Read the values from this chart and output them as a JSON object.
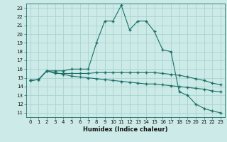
{
  "title": "",
  "xlabel": "Humidex (Indice chaleur)",
  "ylabel": "",
  "xlim": [
    -0.5,
    23.5
  ],
  "ylim": [
    10.5,
    23.5
  ],
  "xticks": [
    0,
    1,
    2,
    3,
    4,
    5,
    6,
    7,
    8,
    9,
    10,
    11,
    12,
    13,
    14,
    15,
    16,
    17,
    18,
    19,
    20,
    21,
    22,
    23
  ],
  "yticks": [
    11,
    12,
    13,
    14,
    15,
    16,
    17,
    18,
    19,
    20,
    21,
    22,
    23
  ],
  "background_color": "#cceae7",
  "grid_color": "#aad4d0",
  "line_color": "#1a7068",
  "line1_x": [
    0,
    1,
    2,
    3,
    4,
    5,
    6,
    7,
    8,
    9,
    10,
    11,
    12,
    13,
    14,
    15,
    16,
    17,
    18,
    19,
    20,
    21,
    22,
    23
  ],
  "line1_y": [
    14.7,
    14.8,
    15.8,
    15.8,
    15.8,
    16.0,
    16.0,
    16.0,
    19.0,
    21.5,
    21.5,
    23.3,
    20.5,
    21.5,
    21.5,
    20.3,
    18.2,
    18.0,
    13.4,
    13.0,
    12.0,
    11.5,
    11.2,
    11.0
  ],
  "line2_x": [
    0,
    1,
    2,
    3,
    4,
    5,
    6,
    7,
    8,
    9,
    10,
    11,
    12,
    13,
    14,
    15,
    16,
    17,
    18,
    19,
    20,
    21,
    22,
    23
  ],
  "line2_y": [
    14.7,
    14.8,
    15.8,
    15.5,
    15.5,
    15.5,
    15.5,
    15.5,
    15.6,
    15.6,
    15.6,
    15.6,
    15.6,
    15.6,
    15.6,
    15.6,
    15.5,
    15.4,
    15.3,
    15.1,
    14.9,
    14.7,
    14.4,
    14.2
  ],
  "line3_x": [
    0,
    1,
    2,
    3,
    4,
    5,
    6,
    7,
    8,
    9,
    10,
    11,
    12,
    13,
    14,
    15,
    16,
    17,
    18,
    19,
    20,
    21,
    22,
    23
  ],
  "line3_y": [
    14.7,
    14.8,
    15.8,
    15.6,
    15.4,
    15.2,
    15.1,
    15.0,
    14.9,
    14.8,
    14.7,
    14.6,
    14.5,
    14.4,
    14.3,
    14.3,
    14.2,
    14.1,
    14.0,
    13.9,
    13.8,
    13.7,
    13.5,
    13.4
  ],
  "tick_fontsize": 5.0,
  "xlabel_fontsize": 6.0
}
